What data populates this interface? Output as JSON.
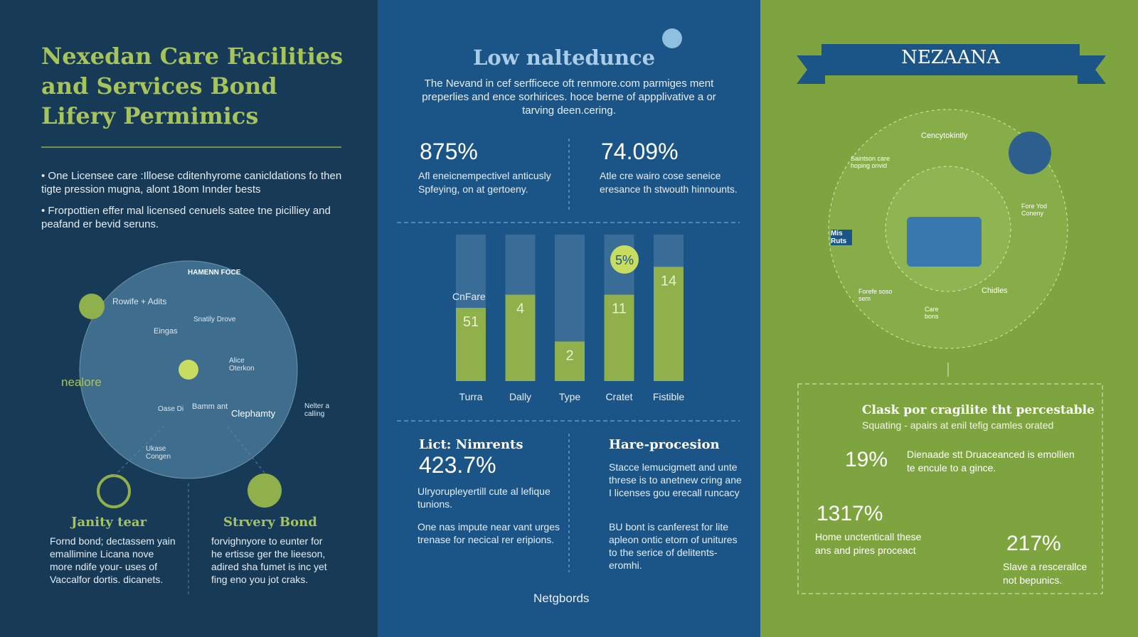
{
  "left": {
    "title": "Nexedan Care Facilities and Services Bond Lifery Permimics",
    "bullets": [
      "One Licensee care :Illoese cditenhyrome canicldations fo then tigte pression mugna, alont 18om Innder bests",
      "Frorpottien effer mal licensed cenuels satee tne picilliey and peafand er bevid seruns."
    ],
    "globe_labels": [
      "HAMENN FOCE",
      "Rowife + Adits",
      "Snatily Drove",
      "Eingas",
      "Alice Oterkon",
      "Bamm ant",
      "Clephamty",
      "Ukase Congen",
      "Oase Di",
      "nealore",
      "Nelter a calling"
    ],
    "cards": [
      {
        "title": "Janity tear",
        "text": "Fornd bond; dectassem yain emallimine Licana nove more ndife your- uses of Vaccalfor dortis. dicanets."
      },
      {
        "title": "Strvery Bond",
        "text": "forvighnyore to eunter for he ertisse ger the lieeson, adired sha fumet is inc yet fing eno you jot craks."
      }
    ]
  },
  "middle": {
    "title": "Low naltedunce",
    "intro": "The Nevand in cef serfficece oft renmore.com parmiges ment preperlies and ence sorhirices. hoce berne of appplivative a or tarving deen.cering.",
    "stats": [
      {
        "value": "875%",
        "text": "Afl eneicnempectivel anticusly Spfeying, on at gertoeny."
      },
      {
        "value": "74.09%",
        "text": "Atle cre wairo cose seneice eresance th stwouth hinnounts."
      }
    ],
    "bars": {
      "categories": [
        "Turra",
        "Dally",
        "Type",
        "Cratet",
        "Fistible"
      ],
      "values": [
        50,
        59,
        27,
        59,
        78
      ],
      "labels": [
        "51",
        "4",
        "2",
        "11",
        "14"
      ],
      "badge": "5%",
      "side_label": "CnFare"
    },
    "lower": [
      {
        "title": "Lict: Nimrents",
        "value": "423.7%",
        "text": "Ulryorupleyertill cute al lefique tunions.",
        "note": "One nas impute near vant urges trenase for necical rer eripions."
      },
      {
        "title": "Hare-procesion",
        "text": "Stacce lemucigmett and unte threse is to anetnew cring ane I licenses gou erecall runcacy",
        "note": "BU bont is canferest for lite apleon ontic etorn of unitures to the serice of delitents-eromhi."
      }
    ],
    "footer": "Netgbords"
  },
  "right": {
    "banner": "NEZAANA",
    "wheel_labels": [
      "Cencytokintly",
      "Saintson care hoping onvid",
      "Mis Ruts",
      "Fore Yod Coneny",
      "Chidles",
      "Forefe soso sem",
      "Care bons"
    ],
    "box": {
      "title": "Clask por cragilite tht percestable",
      "subtitle": "Squating - apairs at enil tefig camles orated",
      "stats": [
        {
          "value": "19%",
          "text": "Dienaade stt Druaceanced is emollien te encule to a gince."
        },
        {
          "value": "1317%",
          "text": "Home unctenticall these ans and pires proceact"
        },
        {
          "value": "217%",
          "text": "Slave a rescerallce not bepunics."
        }
      ]
    }
  }
}
